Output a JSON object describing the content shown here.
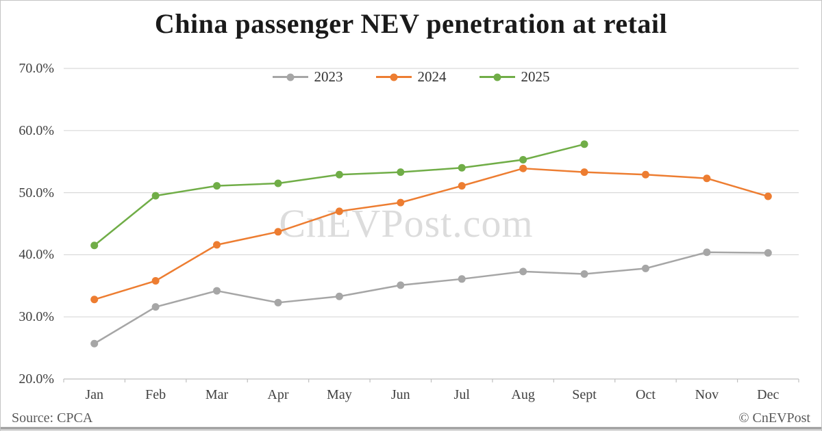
{
  "chart_data": {
    "type": "line",
    "title": "China passenger NEV penetration at retail",
    "xlabel": "",
    "ylabel": "",
    "ylim": [
      20,
      70
    ],
    "grid": "horizontal",
    "legend_position": "top-center",
    "categories": [
      "Jan",
      "Feb",
      "Mar",
      "Apr",
      "May",
      "Jun",
      "Jul",
      "Aug",
      "Sept",
      "Oct",
      "Nov",
      "Dec"
    ],
    "y_ticks": [
      {
        "label": "70.0%",
        "value": 70
      },
      {
        "label": "60.0%",
        "value": 60
      },
      {
        "label": "50.0%",
        "value": 50
      },
      {
        "label": "40.0%",
        "value": 40
      },
      {
        "label": "30.0%",
        "value": 30
      },
      {
        "label": "20.0%",
        "value": 20
      }
    ],
    "series": [
      {
        "name": "2023",
        "color": "#a6a6a6",
        "values": [
          25.7,
          31.6,
          34.2,
          32.3,
          33.3,
          35.1,
          36.1,
          37.3,
          36.9,
          37.8,
          40.4,
          40.3
        ]
      },
      {
        "name": "2024",
        "color": "#ed7d31",
        "values": [
          32.8,
          35.8,
          41.6,
          43.7,
          47.0,
          48.4,
          51.1,
          53.9,
          53.3,
          52.9,
          52.3,
          49.4
        ]
      },
      {
        "name": "2025",
        "color": "#70ad47",
        "values": [
          41.5,
          49.5,
          51.1,
          51.5,
          52.9,
          53.3,
          54.0,
          55.3,
          57.8
        ]
      }
    ]
  },
  "watermark": {
    "text": "CnEVPost.com"
  },
  "footer": {
    "source": "Source: CPCA",
    "copyright": "© CnEVPost"
  },
  "colors": {
    "gridline": "#d9d9d9",
    "axis": "#bfbfbf",
    "series_2023": "#a6a6a6",
    "series_2024": "#ed7d31",
    "series_2025": "#70ad47"
  }
}
